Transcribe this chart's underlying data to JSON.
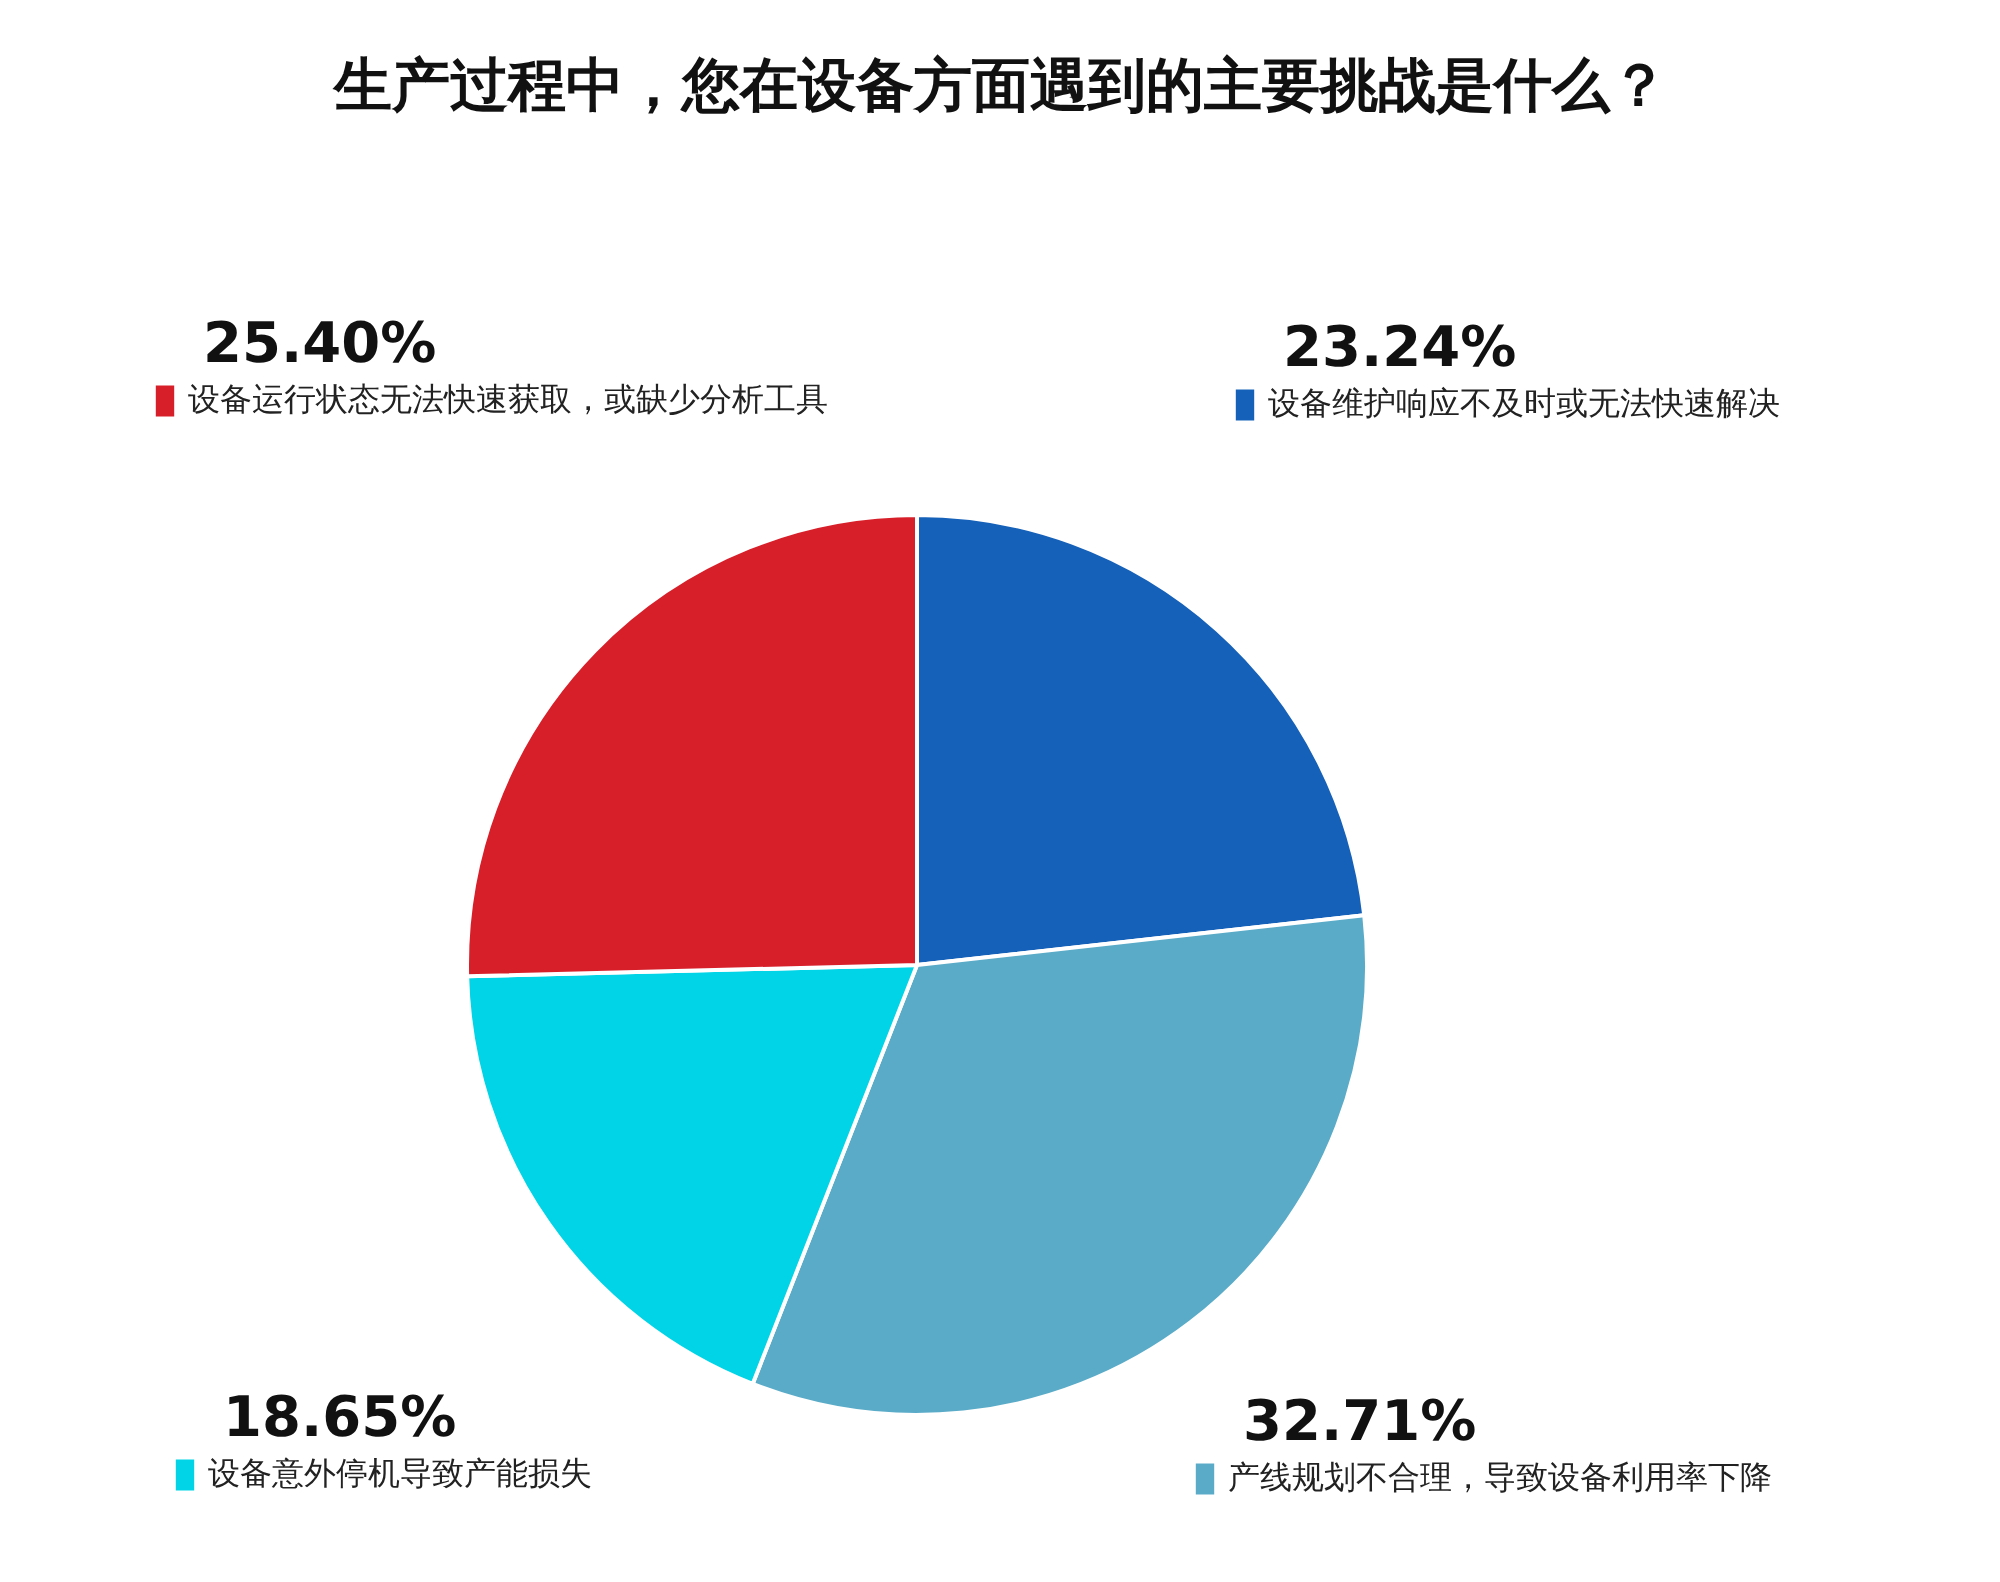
{
  "chart_data": {
    "type": "pie",
    "title": "生产过程中，您在设备方面遇到的主要挑战是什么？",
    "categories": [
      "设备维护响应不及时或无法快速解决",
      "产线规划不合理，导致设备利用率下降",
      "设备意外停机导致产能损失",
      "设备运行状态无法快速获取，或缺少分析工具"
    ],
    "values": [
      23.24,
      32.71,
      18.65,
      25.4
    ],
    "value_labels": [
      "23.24%",
      "32.71%",
      "18.65%",
      "25.40%"
    ],
    "colors": [
      "#1560b8",
      "#5aabc8",
      "#00d4e6",
      "#d71f2a"
    ],
    "legend": "top"
  }
}
